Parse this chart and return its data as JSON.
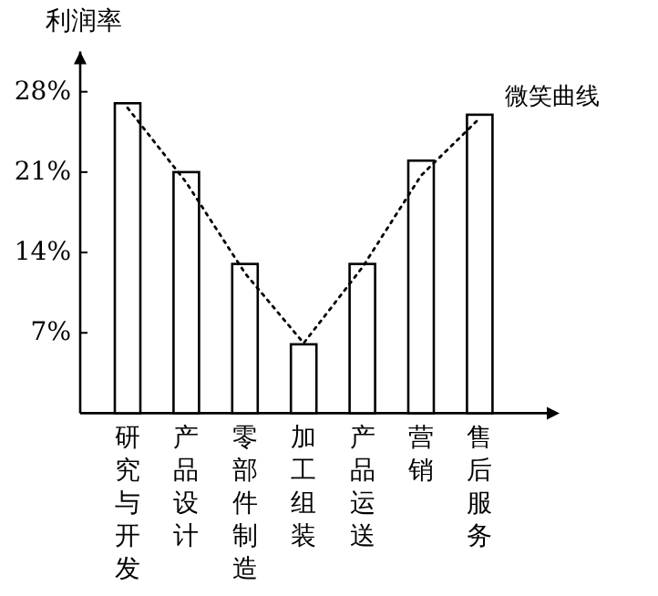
{
  "chart_data": {
    "type": "bar",
    "ylabel": "利润率",
    "categories": [
      "研究与开发",
      "产品设计",
      "零部件制造",
      "加工组装",
      "产品运送",
      "营销",
      "售后服务"
    ],
    "series": [
      {
        "color": "#ffffff",
        "values": [
          27,
          21,
          13,
          6,
          13,
          22,
          26
        ]
      },
      {
        "type": "line",
        "name": "微笑曲线",
        "color": "#000000",
        "line_style": "dotted",
        "values": [
          26.6,
          20.1,
          12.2,
          6.1,
          12.7,
          20.7,
          25.7
        ]
      }
    ],
    "ylim": [
      0,
      31.5
    ],
    "yticks": [
      {
        "value": 7,
        "label": "7%"
      },
      {
        "value": 14,
        "label": "14%"
      },
      {
        "value": 21,
        "label": "21%"
      },
      {
        "value": 28,
        "label": "28%"
      }
    ]
  }
}
